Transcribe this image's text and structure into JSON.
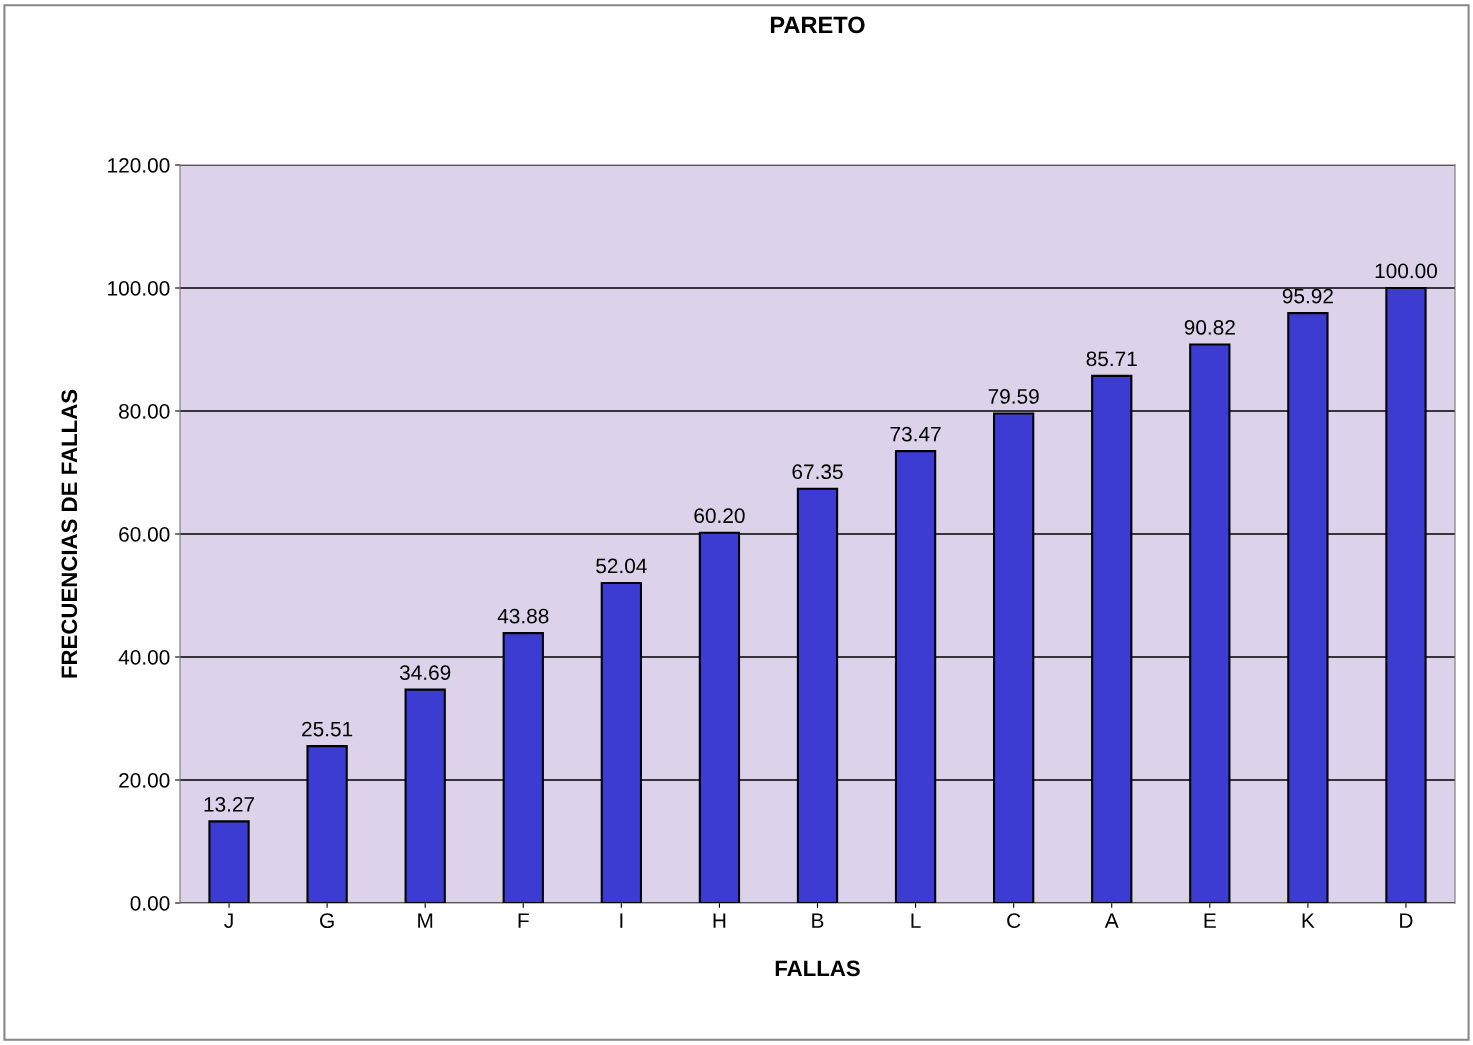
{
  "chart_data": {
    "type": "bar",
    "title": "PARETO",
    "xlabel": "FALLAS",
    "ylabel": "FRECUENCIAS DE FALLAS",
    "categories": [
      "J",
      "G",
      "M",
      "F",
      "I",
      "H",
      "B",
      "L",
      "C",
      "A",
      "E",
      "K",
      "D"
    ],
    "values": [
      13.27,
      25.51,
      34.69,
      43.88,
      52.04,
      60.2,
      67.35,
      73.47,
      79.59,
      85.71,
      90.82,
      95.92,
      100
    ],
    "value_labels": [
      "13.27",
      "25.51",
      "34.69",
      "43.88",
      "52.04",
      "60.20",
      "67.35",
      "73.47",
      "79.59",
      "85.71",
      "90.82",
      "95.92",
      "100.00"
    ],
    "color": "#3c3cd2",
    "ylim": [
      0,
      120
    ],
    "yticks": [
      {
        "value": 0,
        "label": "0.00"
      },
      {
        "value": 20,
        "label": "20.00"
      },
      {
        "value": 40,
        "label": "40.00"
      },
      {
        "value": 60,
        "label": "60.00"
      },
      {
        "value": 80,
        "label": "80.00"
      },
      {
        "value": 100,
        "label": "100.00"
      },
      {
        "value": 120,
        "label": "120.00"
      }
    ],
    "grid": "y"
  }
}
